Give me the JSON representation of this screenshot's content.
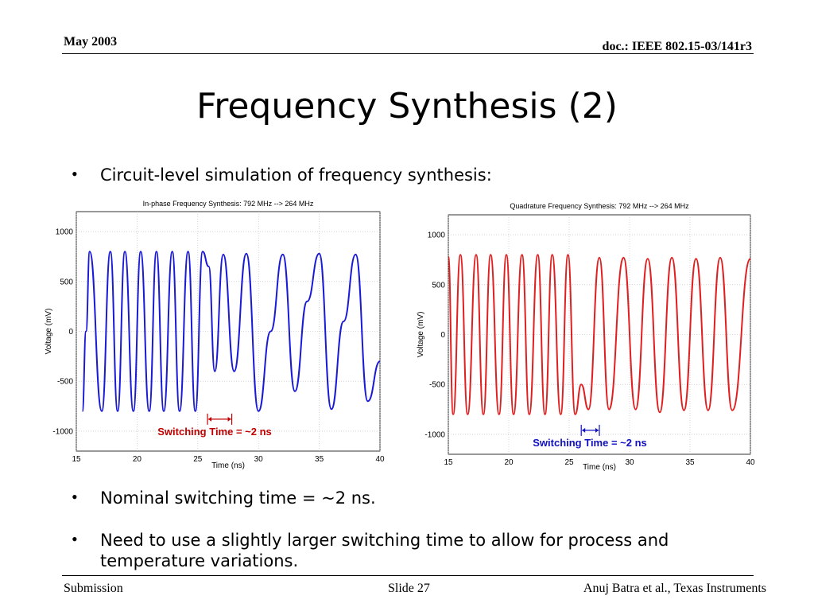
{
  "header": {
    "date": "May 2003",
    "doc_id": "doc.: IEEE 802.15-03/141r3"
  },
  "slide_title": "Frequency Synthesis (2)",
  "bullets": [
    "Circuit-level simulation of frequency synthesis:",
    "Nominal switching time = ~2 ns.",
    "Need to use a slightly larger switching time to allow for process and temperature variations."
  ],
  "footer": {
    "left": "Submission",
    "center": "Slide 27",
    "right": "Anuj Batra et al., Texas Instruments"
  },
  "chart_data": [
    {
      "type": "line",
      "title": "In-phase Frequency Synthesis: 792 MHz --> 264 MHz",
      "xlabel": "Time (ns)",
      "ylabel": "Voltage (mV)",
      "xlim": [
        15,
        40
      ],
      "ylim": [
        -1200,
        1200
      ],
      "xticks": [
        15,
        20,
        25,
        30,
        35,
        40
      ],
      "yticks": [
        -1000,
        -500,
        0,
        500,
        1000
      ],
      "grid": true,
      "series": [
        {
          "color": "#1a1ad6",
          "x": [
            15.5,
            15.8,
            16.1,
            17.1,
            17.8,
            18.4,
            19.0,
            19.7,
            20.3,
            21.0,
            21.6,
            22.2,
            22.9,
            23.5,
            24.2,
            24.8,
            25.4,
            25.9,
            26.4,
            27.1,
            28.0,
            29.0,
            30.0,
            31.0,
            32.0,
            33.0,
            34.0,
            35.0,
            36.0,
            37.0,
            38.0,
            39.0,
            40.0
          ],
          "y": [
            -800,
            0,
            800,
            -800,
            800,
            -800,
            800,
            -800,
            800,
            -800,
            800,
            -800,
            800,
            -800,
            800,
            -800,
            800,
            650,
            -400,
            770,
            -400,
            780,
            -800,
            0,
            770,
            -600,
            300,
            780,
            -780,
            100,
            770,
            -700,
            -300
          ]
        }
      ],
      "annotation": {
        "text": "Switching Time = ~2 ns",
        "color": "#c00000",
        "x_start": 25.8,
        "x_end": 27.8
      }
    },
    {
      "type": "line",
      "title": "Quadrature Frequency Synthesis: 792 MHz --> 264 MHz",
      "xlabel": "Time (ns)",
      "ylabel": "Voltage (mV)",
      "xlim": [
        15,
        40
      ],
      "ylim": [
        -1200,
        1200
      ],
      "xticks": [
        15,
        20,
        25,
        30,
        35,
        40
      ],
      "yticks": [
        -1000,
        -500,
        0,
        500,
        1000
      ],
      "grid": true,
      "series": [
        {
          "color": "#e02020",
          "x": [
            15.0,
            15.4,
            16.0,
            16.6,
            17.3,
            17.9,
            18.5,
            19.2,
            19.8,
            20.4,
            21.1,
            21.7,
            22.4,
            23.0,
            23.6,
            24.3,
            24.9,
            25.5,
            26.0,
            26.6,
            27.5,
            28.3,
            29.5,
            30.5,
            31.5,
            32.5,
            33.5,
            34.5,
            35.5,
            36.5,
            37.5,
            38.5,
            40.0
          ],
          "y": [
            780,
            -800,
            800,
            -800,
            800,
            -800,
            800,
            -800,
            800,
            -800,
            800,
            -800,
            800,
            -800,
            800,
            -800,
            800,
            -800,
            -500,
            -750,
            770,
            -750,
            770,
            -750,
            760,
            -780,
            770,
            -760,
            760,
            -760,
            770,
            -760,
            760
          ]
        }
      ],
      "annotation": {
        "text": "Switching Time = ~2 ns",
        "color": "#1010c0",
        "x_start": 26.0,
        "x_end": 27.5
      }
    }
  ]
}
